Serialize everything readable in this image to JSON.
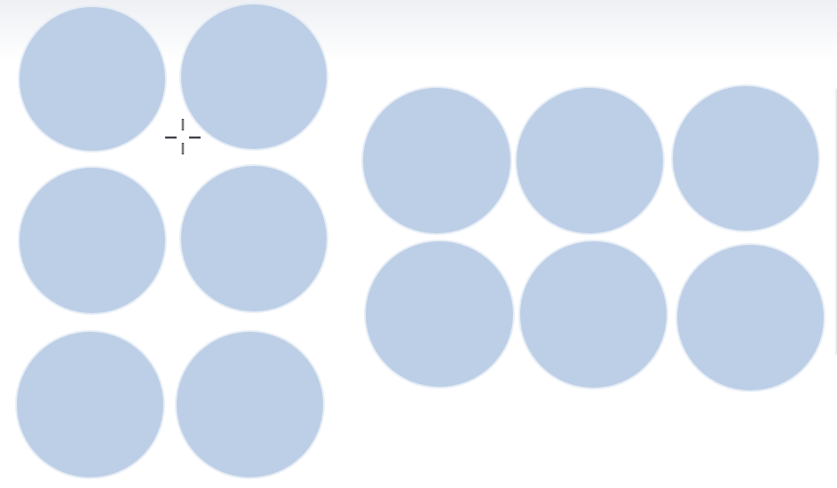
{
  "canvas": {
    "background": "#ffffff",
    "shape_fill": "#bccfe6"
  },
  "shapes": {
    "left_group": {
      "rows": 3,
      "columns": 2,
      "shape": "circle"
    },
    "right_group": {
      "rows": 2,
      "columns": 3,
      "shape": "circle"
    }
  },
  "cursor": {
    "icon": "move-crosshair-icon"
  }
}
